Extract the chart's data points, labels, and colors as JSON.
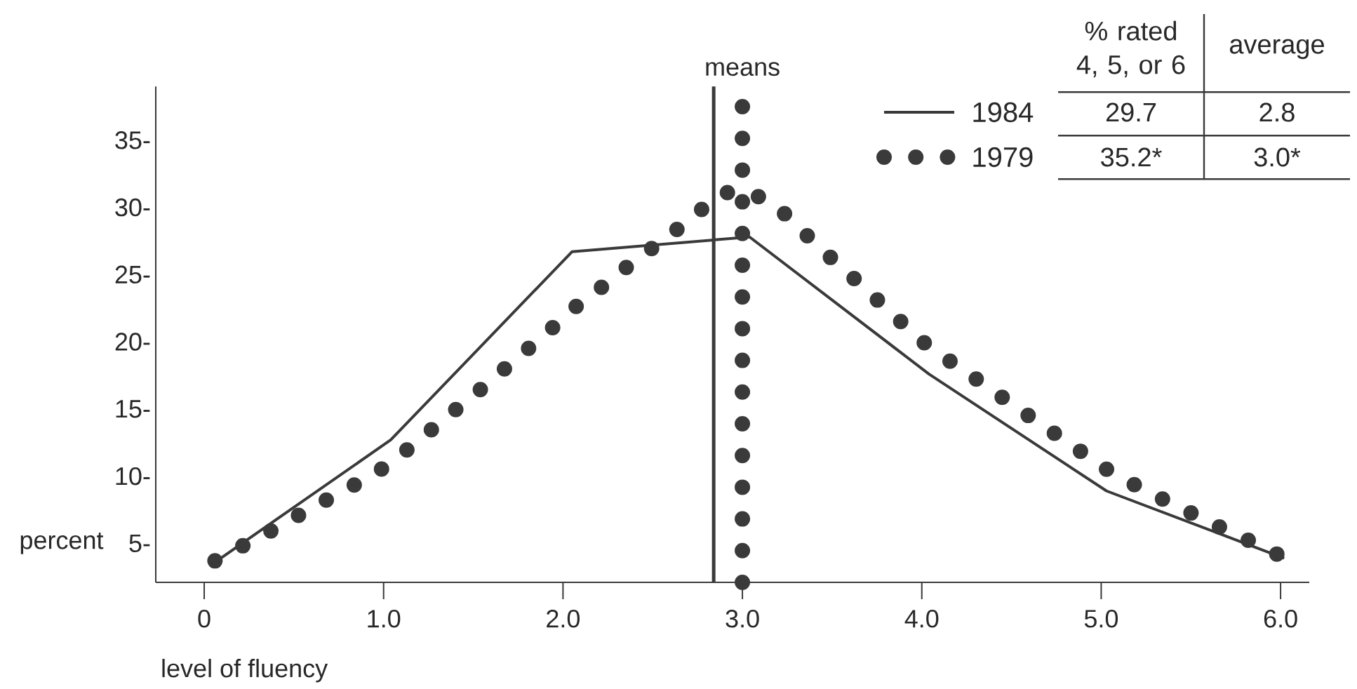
{
  "chart_data": {
    "type": "line",
    "xlabel": "level of fluency",
    "ylabel": "percent",
    "xlim": [
      -0.27,
      6.16
    ],
    "ylim": [
      2.1,
      39
    ],
    "xticks": [
      0,
      {
        "value": 1,
        "label": "1.0"
      },
      {
        "value": 2,
        "label": "2.0"
      },
      {
        "value": 3,
        "label": "3.0"
      },
      {
        "value": 4,
        "label": "4.0"
      },
      {
        "value": 5,
        "label": "5.0"
      },
      {
        "value": 6,
        "label": "6.0"
      }
    ],
    "yticks": [
      {
        "value": 5,
        "label": "5-"
      },
      {
        "value": 10,
        "label": "10-"
      },
      {
        "value": 15,
        "label": "15-"
      },
      {
        "value": 20,
        "label": "20-"
      },
      {
        "value": 25,
        "label": "25-"
      },
      {
        "value": 30,
        "label": "30-"
      },
      {
        "value": 35,
        "label": "35-"
      }
    ],
    "legend": "top right",
    "series": [
      {
        "name": "1984",
        "color": "#3a3a3a",
        "line_style": "solid",
        "marker": "none",
        "x": [
          0.06,
          1.04,
          2.05,
          3.04,
          4.04,
          5.03,
          6.02
        ],
        "values": [
          3.6,
          12.7,
          26.7,
          27.8,
          17.6,
          8.9,
          3.9
        ]
      },
      {
        "name": "1979",
        "color": "#3a3a3a",
        "line_style": "dotted",
        "marker": "none",
        "x": [
          0.06,
          0.24,
          0.41,
          0.58,
          0.76,
          0.93,
          1.05,
          1.2,
          1.35,
          1.5,
          1.64,
          1.79,
          1.93,
          2.06,
          2.2,
          2.34,
          2.48,
          2.62,
          2.75,
          2.89,
          3.03,
          3.15,
          3.29,
          3.41,
          3.55,
          3.68,
          3.81,
          3.94,
          4.05,
          4.21,
          4.36,
          4.52,
          4.67,
          4.83,
          4.98,
          5.11,
          5.28,
          5.45,
          5.63,
          5.81,
          5.98
        ],
        "values": [
          3.7,
          5.0,
          6.2,
          7.5,
          8.8,
          10.0,
          11.1,
          12.7,
          14.4,
          16.0,
          17.6,
          19.3,
          20.9,
          22.5,
          23.9,
          25.4,
          26.8,
          28.2,
          29.6,
          31.1,
          31.1,
          30.5,
          28.9,
          27.2,
          25.6,
          24.0,
          22.4,
          20.8,
          19.5,
          18.1,
          16.7,
          15.2,
          13.8,
          12.4,
          10.9,
          9.9,
          8.7,
          7.6,
          6.4,
          5.3,
          4.2
        ]
      }
    ],
    "ref_lines": [
      {
        "axis": "x",
        "value": 2.84,
        "color": "#3a3a3a",
        "line_style": "solid"
      },
      {
        "axis": "x",
        "value": 3.0,
        "color": "#3a3a3a",
        "line_style": "dotted",
        "label": "means"
      }
    ],
    "annotations": [
      "% rated 4, 5, or 6",
      "average",
      "29.7",
      "2.8",
      "35.2*",
      "3.0*"
    ]
  }
}
